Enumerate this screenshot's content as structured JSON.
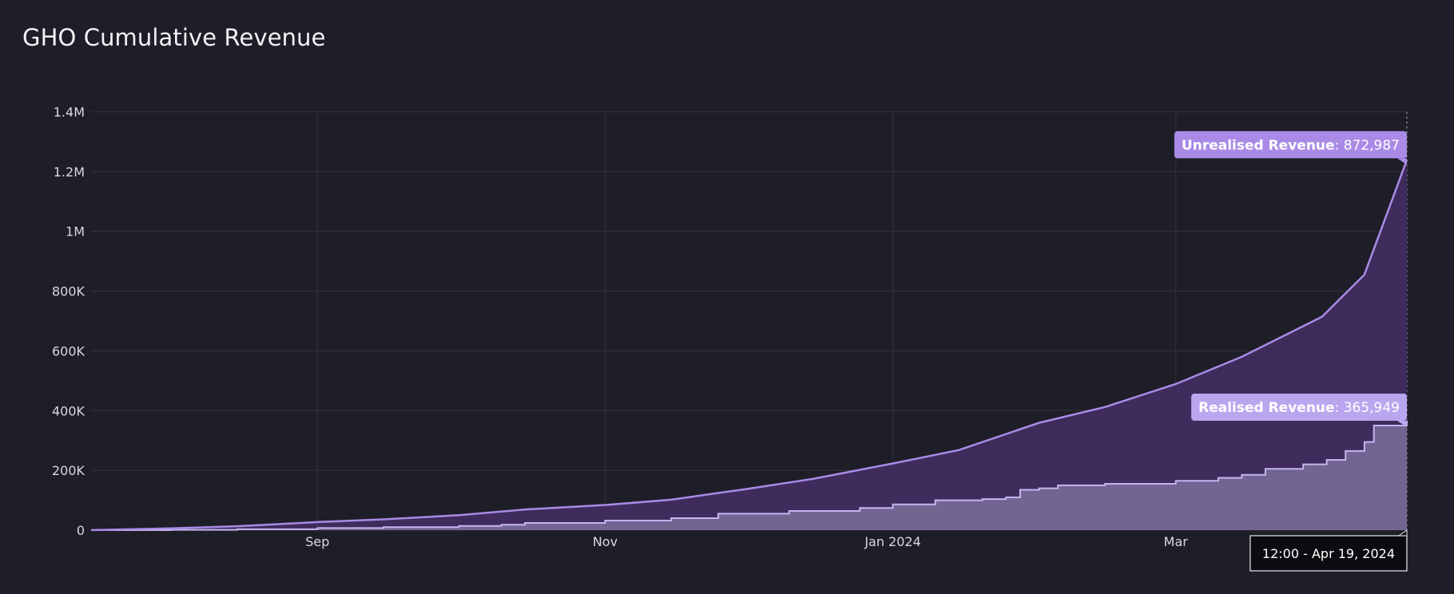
{
  "chart_data": {
    "type": "area",
    "title": "GHO Cumulative Revenue",
    "xlabel": "",
    "ylabel": "",
    "x_ticks": [
      {
        "label": "Sep",
        "date": "2023-09-01"
      },
      {
        "label": "Nov",
        "date": "2023-11-01"
      },
      {
        "label": "Jan 2024",
        "date": "2024-01-01"
      },
      {
        "label": "Mar",
        "date": "2024-03-01"
      }
    ],
    "xlim": [
      "2023-07-15",
      "2024-04-19"
    ],
    "ylim": [
      0,
      1400000
    ],
    "y_ticks": [
      {
        "value": 0,
        "label": "0"
      },
      {
        "value": 200000,
        "label": "200K"
      },
      {
        "value": 400000,
        "label": "400K"
      },
      {
        "value": 600000,
        "label": "600K"
      },
      {
        "value": 800000,
        "label": "800K"
      },
      {
        "value": 1000000,
        "label": "1M"
      },
      {
        "value": 1200000,
        "label": "1.2M"
      },
      {
        "value": 1400000,
        "label": "1.4M"
      }
    ],
    "grid": true,
    "stacked": true,
    "series": [
      {
        "name": "Realised Revenue",
        "color": "#c4b5f0",
        "fill": "#736592",
        "points": [
          [
            "2023-07-15",
            0
          ],
          [
            "2023-08-01",
            1000
          ],
          [
            "2023-08-15",
            3000
          ],
          [
            "2023-09-01",
            7000
          ],
          [
            "2023-09-15",
            10000
          ],
          [
            "2023-10-01",
            14000
          ],
          [
            "2023-10-10",
            18000
          ],
          [
            "2023-10-15",
            24000
          ],
          [
            "2023-11-01",
            32000
          ],
          [
            "2023-11-15",
            40000
          ],
          [
            "2023-11-25",
            55000
          ],
          [
            "2023-12-10",
            64000
          ],
          [
            "2023-12-25",
            74000
          ],
          [
            "2024-01-01",
            86000
          ],
          [
            "2024-01-10",
            100000
          ],
          [
            "2024-01-20",
            104000
          ],
          [
            "2024-01-25",
            110000
          ],
          [
            "2024-01-28",
            135000
          ],
          [
            "2024-02-01",
            140000
          ],
          [
            "2024-02-05",
            150000
          ],
          [
            "2024-02-15",
            155000
          ],
          [
            "2024-03-01",
            165000
          ],
          [
            "2024-03-10",
            175000
          ],
          [
            "2024-03-15",
            185000
          ],
          [
            "2024-03-20",
            205000
          ],
          [
            "2024-03-28",
            220000
          ],
          [
            "2024-04-02",
            235000
          ],
          [
            "2024-04-06",
            265000
          ],
          [
            "2024-04-10",
            295000
          ],
          [
            "2024-04-12",
            350000
          ],
          [
            "2024-04-19",
            365949
          ]
        ]
      },
      {
        "name": "Unrealised Revenue",
        "color": "#a98ae6",
        "fill": "#3f2c5c",
        "points": [
          [
            "2023-07-15",
            0
          ],
          [
            "2023-08-01",
            5000
          ],
          [
            "2023-08-15",
            10000
          ],
          [
            "2023-09-01",
            20000
          ],
          [
            "2023-09-15",
            26000
          ],
          [
            "2023-10-01",
            36000
          ],
          [
            "2023-10-15",
            45000
          ],
          [
            "2023-11-01",
            52000
          ],
          [
            "2023-11-15",
            62000
          ],
          [
            "2023-12-01",
            79000
          ],
          [
            "2023-12-15",
            104000
          ],
          [
            "2024-01-01",
            137000
          ],
          [
            "2024-01-15",
            166000
          ],
          [
            "2024-02-01",
            219000
          ],
          [
            "2024-02-15",
            257000
          ],
          [
            "2024-03-01",
            324000
          ],
          [
            "2024-03-15",
            395000
          ],
          [
            "2024-04-01",
            482000
          ],
          [
            "2024-04-10",
            560000
          ],
          [
            "2024-04-19",
            872987
          ]
        ]
      }
    ],
    "tooltips": {
      "unrealised_label": "Unrealised Revenue",
      "unrealised_value": ": 872,987",
      "realised_label": "Realised Revenue",
      "realised_value": ": 365,949",
      "time": "12:00 - Apr 19, 2024"
    }
  }
}
